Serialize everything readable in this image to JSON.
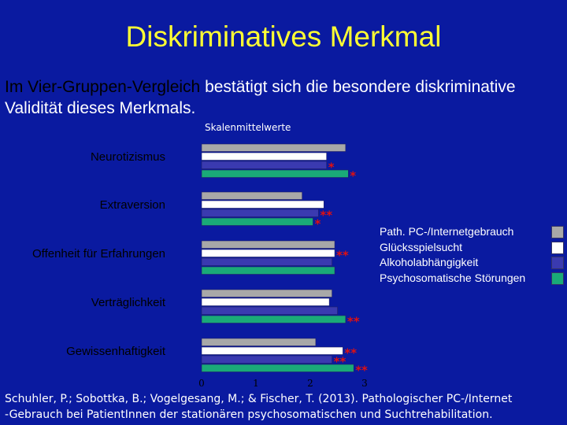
{
  "slide": {
    "title": "Diskriminatives Merkmal",
    "subtitle_highlight": "Im Vier-Gruppen-Vergleich",
    "subtitle_rest": " bestätigt sich die besondere diskriminative Validität dieses Merkmals.",
    "citation_line1": "Schuhler, P.; Sobottka, B.; Vogelgesang, M.; & Fischer, T. (2013). Pathologischer PC-/Internet",
    "citation_line2": "-Gebrauch bei PatientInnen der stationären psychosomatischen und Suchtrehabilitation."
  },
  "chart_data": {
    "type": "bar",
    "orientation": "horizontal",
    "title": "Skalenmittelwerte",
    "categories": [
      "Neurotizismus",
      "Extraversion",
      "Offenheit für Erfahrungen",
      "Verträglichkeit",
      "Gewissenhaftigkeit"
    ],
    "series": [
      {
        "name": "Path. PC-/Internetgebrauch",
        "color": "#a8a8a8",
        "values": [
          2.65,
          1.85,
          2.45,
          2.4,
          2.1
        ]
      },
      {
        "name": "Glücksspielsucht",
        "color": "#ffffff",
        "values": [
          2.3,
          2.25,
          2.45,
          2.35,
          2.6
        ]
      },
      {
        "name": "Alkoholabhängigkeit",
        "color": "#3a3ab0",
        "values": [
          2.3,
          2.15,
          2.4,
          2.5,
          2.4
        ]
      },
      {
        "name": "Psychosomatische Störungen",
        "color": "#1aaa78",
        "values": [
          2.7,
          2.05,
          2.45,
          2.65,
          2.8
        ]
      }
    ],
    "significance": [
      [
        "",
        "",
        "*",
        "*"
      ],
      [
        "",
        "",
        "**",
        "*"
      ],
      [
        "",
        "**",
        "",
        ""
      ],
      [
        "",
        "",
        "",
        "**"
      ],
      [
        "",
        "**",
        "**",
        "**"
      ]
    ],
    "xlim": [
      0,
      3
    ],
    "xticks": [
      0,
      1,
      2,
      3
    ],
    "grid": false,
    "legend_position": "right"
  }
}
